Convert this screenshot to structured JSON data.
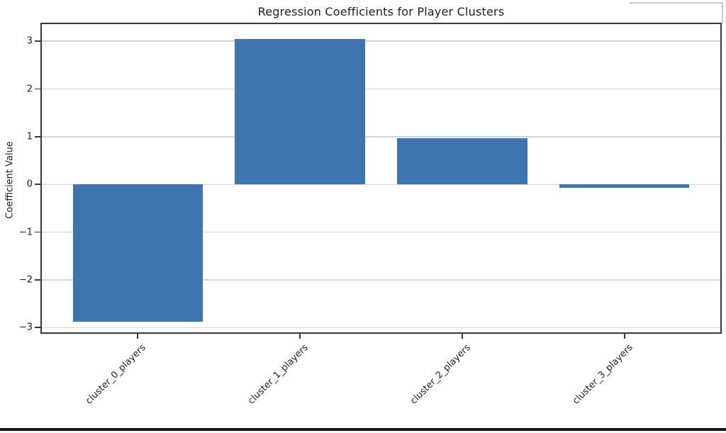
{
  "chart_data": {
    "type": "bar",
    "title": "Regression Coefficients for Player Clusters",
    "xlabel": "",
    "ylabel": "Coefficient Value",
    "categories": [
      "cluster_0_players",
      "cluster_1_players",
      "cluster_2_players",
      "cluster_3_players"
    ],
    "values": [
      -2.87,
      3.05,
      0.97,
      -0.07
    ],
    "yticks": [
      3,
      2,
      1,
      0,
      -1,
      -2,
      -3
    ],
    "ylim": [
      -3.1,
      3.36
    ],
    "xlim": [
      -0.59,
      3.59
    ],
    "bar_width": 0.8,
    "x_tick_rotation": -45,
    "grid": "horizontal",
    "legend": "none",
    "colors": {
      "bar": "#3d76ae",
      "grid": "#d4d4d4",
      "spine": "#383838",
      "tick": "#383838",
      "text": "#1c1c1c"
    }
  },
  "artifacts": {
    "overlay_window_edge_color": "#c9c9c9",
    "window_bottom_edge_color": "#161616"
  }
}
